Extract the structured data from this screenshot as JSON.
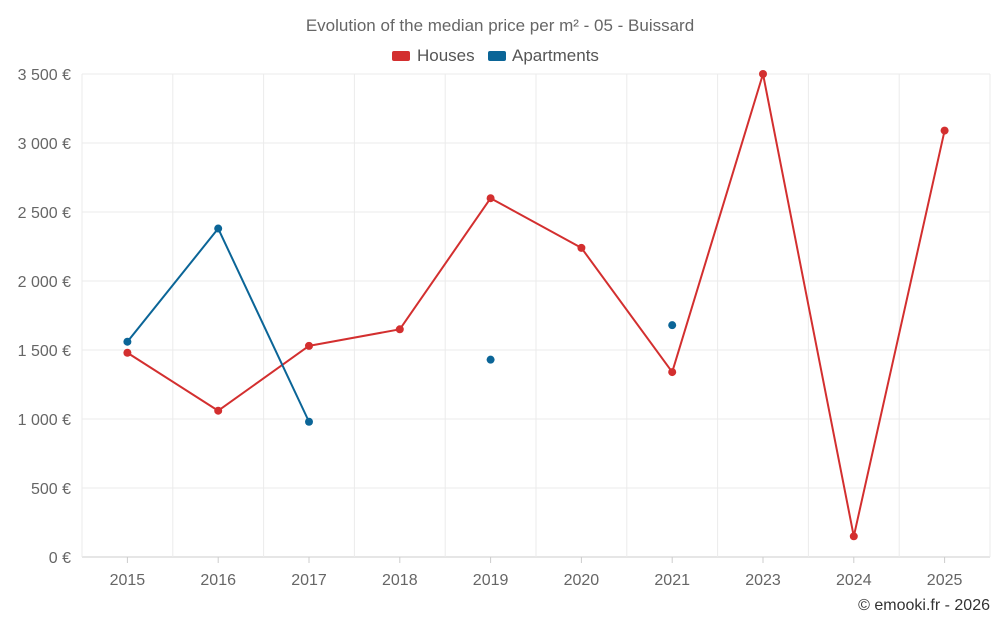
{
  "chart_data": {
    "type": "line",
    "title": "Evolution of the median price per m² - 05 - Buissard",
    "categories": [
      "2015",
      "2016",
      "2017",
      "2018",
      "2019",
      "2020",
      "2021",
      "2023",
      "2024",
      "2025"
    ],
    "y_tick_labels": [
      "0 €",
      "500 €",
      "1 000 €",
      "1 500 €",
      "2 000 €",
      "2 500 €",
      "3 000 €",
      "3 500 €"
    ],
    "y_tick_values": [
      0,
      500,
      1000,
      1500,
      2000,
      2500,
      3000,
      3500
    ],
    "ylim": [
      0,
      3500
    ],
    "grid": true,
    "legend_position": "top-center",
    "series": [
      {
        "name": "Houses",
        "color": "#d32f2f",
        "values": [
          1480,
          1060,
          1530,
          1650,
          2600,
          2240,
          1340,
          3500,
          150,
          3090
        ]
      },
      {
        "name": "Apartments",
        "color": "#0b6597",
        "values": [
          1560,
          2380,
          980,
          null,
          1430,
          null,
          1680,
          null,
          null,
          null
        ]
      }
    ],
    "credit": "© emooki.fr - 2026"
  }
}
